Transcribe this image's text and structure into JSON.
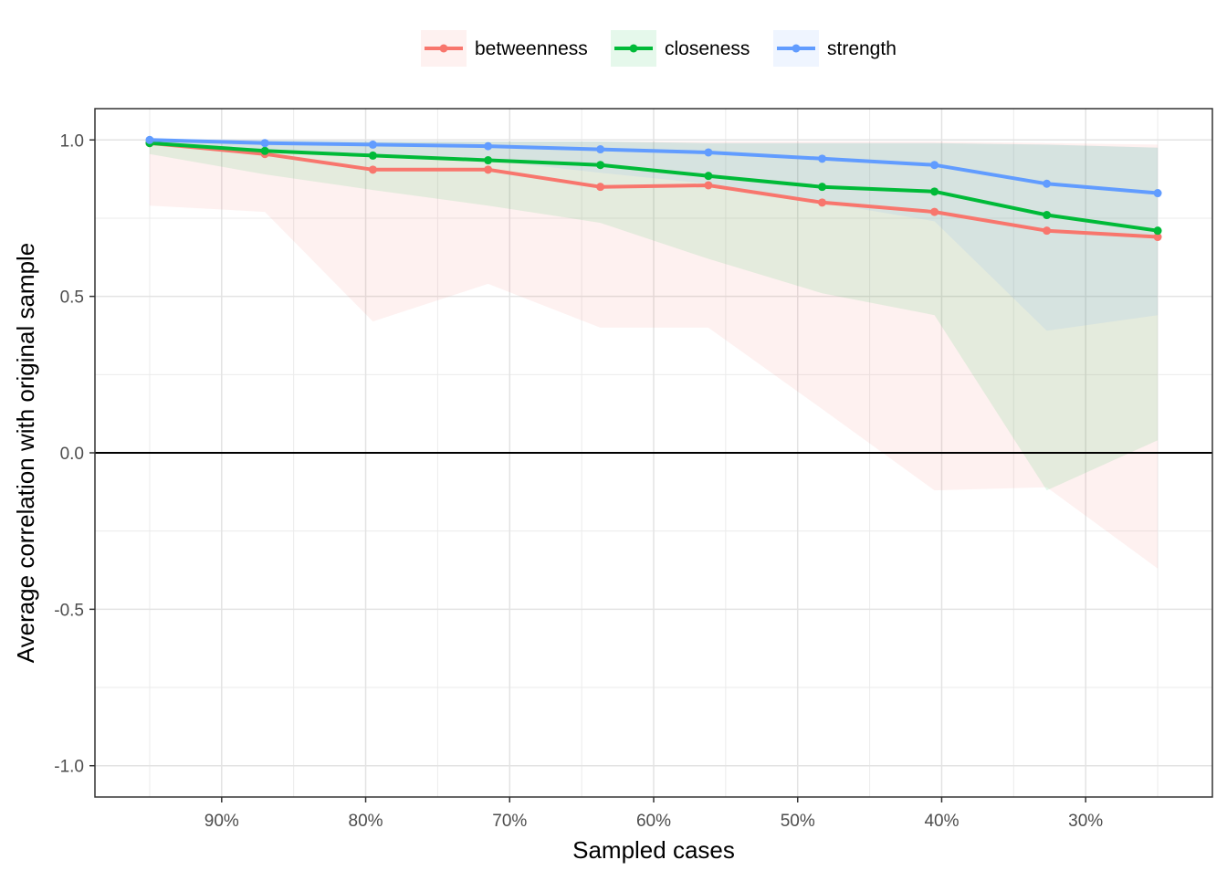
{
  "chart_data": {
    "type": "line",
    "xlabel": "Sampled cases",
    "ylabel": "Average correlation with original sample",
    "x": [
      0.95,
      0.87,
      0.795,
      0.715,
      0.637,
      0.562,
      0.483,
      0.405,
      0.327,
      0.25
    ],
    "xlim": [
      0.988,
      0.212
    ],
    "ylim": [
      -1.1,
      1.1
    ],
    "x_ticks": [
      0.9,
      0.8,
      0.7,
      0.6,
      0.5,
      0.4,
      0.3
    ],
    "x_tick_labels": [
      "90%",
      "80%",
      "70%",
      "60%",
      "50%",
      "40%",
      "30%"
    ],
    "y_ticks": [
      -1.0,
      -0.5,
      0.0,
      0.5,
      1.0
    ],
    "y_tick_labels": [
      "-1.0",
      "-0.5",
      "0.0",
      "0.5",
      "1.0"
    ],
    "grid": true,
    "legend_position": "top",
    "reference_line_y": 0,
    "series": [
      {
        "name": "betweenness",
        "color": "#F8766D",
        "values": [
          0.99,
          0.955,
          0.905,
          0.905,
          0.85,
          0.855,
          0.8,
          0.77,
          0.71,
          0.69
        ],
        "lower": [
          0.79,
          0.77,
          0.42,
          0.54,
          0.4,
          0.4,
          0.14,
          -0.12,
          -0.11,
          -0.37
        ],
        "upper": [
          1.0,
          0.998,
          0.995,
          0.995,
          0.995,
          0.995,
          0.995,
          0.995,
          0.99,
          0.985
        ]
      },
      {
        "name": "closeness",
        "color": "#00BA38",
        "values": [
          0.99,
          0.965,
          0.95,
          0.935,
          0.92,
          0.885,
          0.85,
          0.835,
          0.76,
          0.71
        ],
        "lower": [
          0.955,
          0.89,
          0.84,
          0.79,
          0.735,
          0.62,
          0.51,
          0.44,
          -0.12,
          0.04
        ],
        "upper": [
          1.0,
          0.998,
          0.995,
          0.995,
          0.995,
          0.99,
          0.99,
          0.99,
          0.985,
          0.975
        ]
      },
      {
        "name": "strength",
        "color": "#619CFF",
        "values": [
          1.0,
          0.99,
          0.985,
          0.98,
          0.97,
          0.96,
          0.94,
          0.92,
          0.86,
          0.83
        ],
        "lower": [
          0.99,
          0.97,
          0.955,
          0.935,
          0.895,
          0.86,
          0.8,
          0.74,
          0.39,
          0.44
        ],
        "upper": [
          1.0,
          1.0,
          0.998,
          0.995,
          0.995,
          0.99,
          0.99,
          0.99,
          0.985,
          0.975
        ]
      }
    ]
  }
}
